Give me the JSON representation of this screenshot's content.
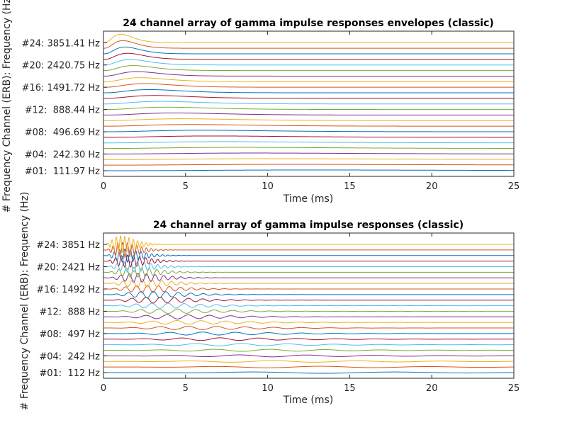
{
  "colors": [
    "#0072BD",
    "#D95319",
    "#EDB120",
    "#7E2F8E",
    "#77AC30",
    "#4DBEEE",
    "#A2142F"
  ],
  "chart_data": [
    {
      "type": "line",
      "title": "24 channel array of gamma impulse responses envelopes (classic)",
      "xlabel": "Time (ms)",
      "ylabel": "# Frequency Channel (ERB): Frequency (Hz)",
      "xlim": [
        0,
        25
      ],
      "xticks": [
        "0",
        "5",
        "10",
        "15",
        "20",
        "25"
      ],
      "n_channels": 24,
      "mode": "envelope",
      "channel_freqs_hz": {
        "1": 111.97,
        "4": 242.3,
        "8": 496.69,
        "12": 888.44,
        "16": 1491.72,
        "20": 2420.75,
        "24": 3851.41
      },
      "yticks": [
        {
          "channel": 24,
          "label": "#24: 3851.41 Hz"
        },
        {
          "channel": 20,
          "label": "#20: 2420.75 Hz"
        },
        {
          "channel": 16,
          "label": "#16: 1491.72 Hz"
        },
        {
          "channel": 12,
          "label": "#12:  888.44 Hz"
        },
        {
          "channel": 8,
          "label": "#08:  496.69 Hz"
        },
        {
          "channel": 4,
          "label": "#04:  242.30 Hz"
        },
        {
          "channel": 1,
          "label": "#01:  111.97 Hz"
        }
      ]
    },
    {
      "type": "line",
      "title": "24 channel array of gamma impulse responses (classic)",
      "xlabel": "Time (ms)",
      "ylabel": "# Frequency Channel (ERB): Frequency (Hz)",
      "xlim": [
        0,
        25
      ],
      "xticks": [
        "0",
        "5",
        "10",
        "15",
        "20",
        "25"
      ],
      "n_channels": 24,
      "mode": "response",
      "channel_freqs_hz": {
        "1": 112,
        "4": 242,
        "8": 497,
        "12": 888,
        "16": 1492,
        "20": 2421,
        "24": 3851
      },
      "yticks": [
        {
          "channel": 24,
          "label": "#24: 3851 Hz"
        },
        {
          "channel": 20,
          "label": "#20: 2421 Hz"
        },
        {
          "channel": 16,
          "label": "#16: 1492 Hz"
        },
        {
          "channel": 12,
          "label": "#12:  888 Hz"
        },
        {
          "channel": 8,
          "label": "#08:  497 Hz"
        },
        {
          "channel": 4,
          "label": "#04:  242 Hz"
        },
        {
          "channel": 1,
          "label": "#01:  112 Hz"
        }
      ]
    }
  ]
}
